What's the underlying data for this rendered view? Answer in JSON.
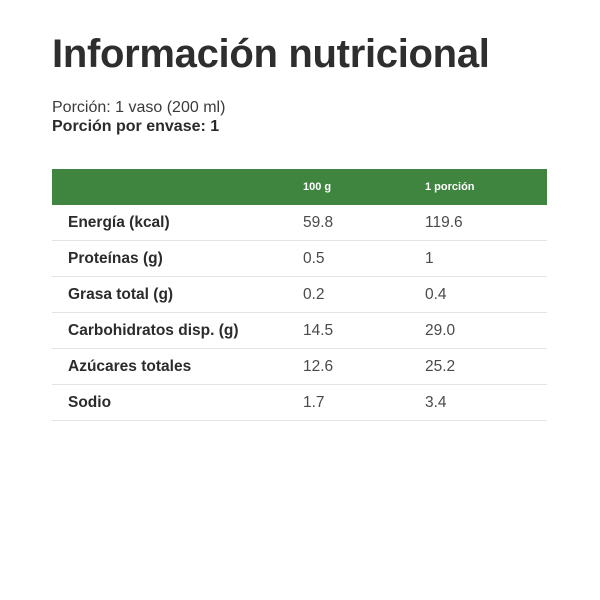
{
  "title": "Información nutricional",
  "serving": {
    "size": "Porción: 1 vaso (200 ml)",
    "per_container": "Porción por envase:  1"
  },
  "table": {
    "headers": [
      "",
      "100 g",
      "1 porción"
    ],
    "rows": [
      {
        "nutrient": "Energía (kcal)",
        "per_100g": "59.8",
        "per_serving": "119.6"
      },
      {
        "nutrient": "Proteínas (g)",
        "per_100g": "0.5",
        "per_serving": "1"
      },
      {
        "nutrient": "Grasa total (g)",
        "per_100g": "0.2",
        "per_serving": "0.4"
      },
      {
        "nutrient": "Carbohidratos disp. (g)",
        "per_100g": "14.5",
        "per_serving": "29.0"
      },
      {
        "nutrient": "Azúcares totales",
        "per_100g": "12.6",
        "per_serving": "25.2"
      },
      {
        "nutrient": "Sodio",
        "per_100g": "1.7",
        "per_serving": "3.4"
      }
    ]
  },
  "colors": {
    "header_bg": "#3f8540",
    "header_text": "#ffffff",
    "row_divider": "#e4e4e4"
  }
}
